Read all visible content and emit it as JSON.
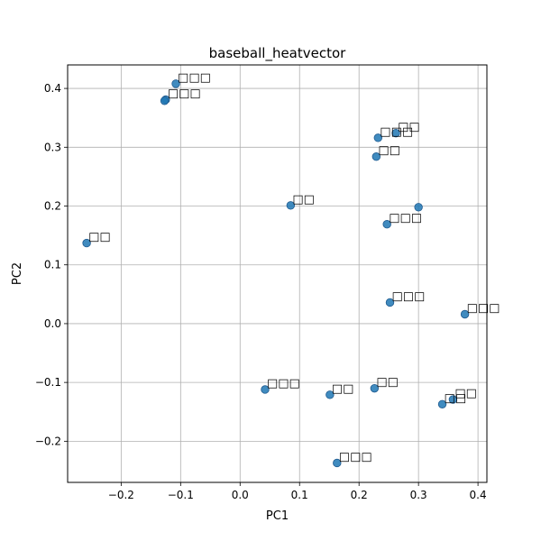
{
  "chart_data": {
    "type": "scatter",
    "title": "baseball_heatvector",
    "xlabel": "PC1",
    "ylabel": "PC2",
    "xlim": [
      -0.29,
      0.415
    ],
    "ylim": [
      -0.27,
      0.44
    ],
    "xticks": [
      -0.2,
      -0.1,
      0.0,
      0.1,
      0.2,
      0.3,
      0.4
    ],
    "xtick_labels": [
      "−0.2",
      "−0.1",
      "0.0",
      "0.1",
      "0.2",
      "0.3",
      "0.4"
    ],
    "yticks": [
      -0.2,
      -0.1,
      0.0,
      0.1,
      0.2,
      0.3,
      0.4
    ],
    "ytick_labels": [
      "−0.2",
      "−0.1",
      "0.0",
      "0.1",
      "0.2",
      "0.3",
      "0.4"
    ],
    "grid": true,
    "marker_color": "#1f77b4",
    "points": [
      {
        "x": -0.108,
        "y": 0.408,
        "label": "□□□"
      },
      {
        "x": -0.125,
        "y": 0.381,
        "label": "□□□"
      },
      {
        "x": -0.127,
        "y": 0.379,
        "label": ""
      },
      {
        "x": 0.262,
        "y": 0.324,
        "label": "□□"
      },
      {
        "x": 0.232,
        "y": 0.316,
        "label": "□□□"
      },
      {
        "x": 0.229,
        "y": 0.284,
        "label": "□□"
      },
      {
        "x": 0.085,
        "y": 0.201,
        "label": "□□"
      },
      {
        "x": 0.3,
        "y": 0.198,
        "label": ""
      },
      {
        "x": 0.247,
        "y": 0.169,
        "label": "□□□"
      },
      {
        "x": -0.258,
        "y": 0.137,
        "label": "□□"
      },
      {
        "x": 0.252,
        "y": 0.036,
        "label": "□□□"
      },
      {
        "x": 0.378,
        "y": 0.016,
        "label": "□□□"
      },
      {
        "x": 0.042,
        "y": -0.112,
        "label": "□□□"
      },
      {
        "x": 0.151,
        "y": -0.121,
        "label": "□□"
      },
      {
        "x": 0.226,
        "y": -0.11,
        "label": "□□"
      },
      {
        "x": 0.358,
        "y": -0.129,
        "label": "□□"
      },
      {
        "x": 0.34,
        "y": -0.137,
        "label": "□□"
      },
      {
        "x": 0.163,
        "y": -0.237,
        "label": "□□□"
      }
    ]
  }
}
